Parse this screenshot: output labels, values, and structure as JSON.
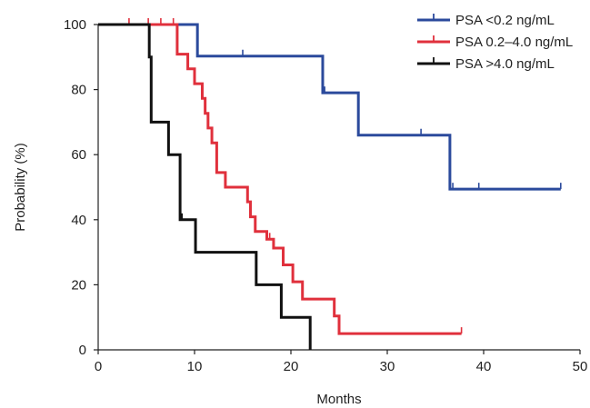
{
  "chart_data": {
    "type": "line",
    "step": true,
    "xlabel": "Months",
    "ylabel": "Probability (%)",
    "xlim": [
      0,
      50
    ],
    "ylim": [
      0,
      100
    ],
    "xticks": [
      0,
      10,
      20,
      30,
      40,
      50
    ],
    "yticks": [
      0,
      20,
      40,
      60,
      80,
      100
    ],
    "grid": false,
    "legend_position": "top-right",
    "series": [
      {
        "name": "PSA <0.2 ng/mL",
        "color": "#2b4a9c",
        "x": [
          0,
          10.3,
          23.3,
          27.0,
          36.5,
          48.0
        ],
        "y": [
          100,
          90.3,
          79.0,
          66.0,
          49.4,
          49.4
        ],
        "censored_x": [
          15.0,
          23.5,
          33.5,
          36.8,
          39.5,
          48.0
        ]
      },
      {
        "name": "PSA 0.2–4.0 ng/mL",
        "color": "#e0303c",
        "x": [
          0,
          8.2,
          9.3,
          10.0,
          10.8,
          11.1,
          11.4,
          11.8,
          12.3,
          13.2,
          15.5,
          15.8,
          16.3,
          17.5,
          18.2,
          19.2,
          20.2,
          21.2,
          24.5,
          25.0,
          37.7
        ],
        "y": [
          100,
          90.9,
          86.4,
          81.8,
          77.3,
          72.7,
          68.2,
          63.6,
          54.5,
          50.0,
          45.5,
          40.9,
          36.4,
          34.0,
          31.3,
          26.1,
          20.9,
          15.6,
          10.4,
          5.0,
          5.0
        ],
        "censored_x": [
          3.2,
          5.2,
          6.5,
          7.8,
          17.8,
          25.0,
          37.7
        ]
      },
      {
        "name": "PSA >4.0 ng/mL",
        "color": "#111111",
        "x": [
          0,
          5.3,
          5.5,
          7.3,
          8.5,
          10.1,
          16.4,
          19.0,
          22.0
        ],
        "y": [
          100,
          90,
          70,
          60,
          40,
          30,
          20,
          10,
          0
        ],
        "censored_x": [
          8.7
        ]
      }
    ]
  }
}
